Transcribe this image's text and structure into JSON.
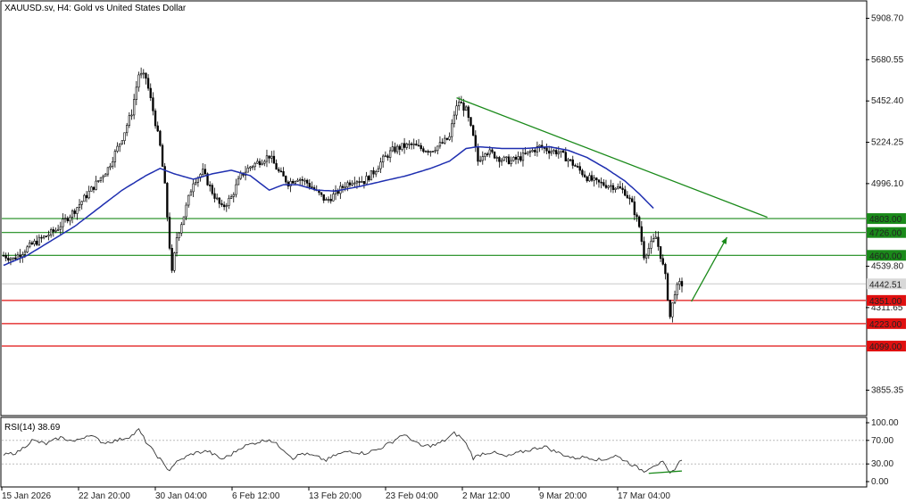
{
  "chart_data": [
    {
      "type": "candlestick",
      "title": "XAUUSD.sv, H4:  Gold vs United States Dollar",
      "ylim": [
        3720,
        6000
      ],
      "y_ticks": [
        "5908.70",
        "5680.55",
        "5452.40",
        "5224.25",
        "4996.10",
        "4539.80",
        "4311.65",
        "3855.35"
      ],
      "x_ticks": [
        "15 Jan 2026",
        "22 Jan 20:00",
        "30 Jan 04:00",
        "6 Feb 12:00",
        "13 Feb 20:00",
        "23 Feb 04:00",
        "2 Mar 12:00",
        "9 Mar 20:00",
        "17 Mar 04:00"
      ],
      "current_price": "4442.51",
      "horizontal_levels": [
        {
          "label": "4803.00",
          "value": 4803,
          "color": "#1a8a1a"
        },
        {
          "label": "4726.00",
          "value": 4726,
          "color": "#1a8a1a"
        },
        {
          "label": "4600.00",
          "value": 4600,
          "color": "#1a8a1a"
        },
        {
          "label": "4351.00",
          "value": 4351,
          "color": "#e01010"
        },
        {
          "label": "4223.00",
          "value": 4223,
          "color": "#e01010"
        },
        {
          "label": "4099.00",
          "value": 4099,
          "color": "#e01010"
        }
      ],
      "price_path_anchors": [
        [
          0,
          4600
        ],
        [
          4,
          4580
        ],
        [
          12,
          4660
        ],
        [
          22,
          4740
        ],
        [
          30,
          4850
        ],
        [
          38,
          4980
        ],
        [
          44,
          5080
        ],
        [
          50,
          5250
        ],
        [
          54,
          5390
        ],
        [
          57,
          5600
        ],
        [
          60,
          5580
        ],
        [
          63,
          5400
        ],
        [
          66,
          5200
        ],
        [
          68,
          4980
        ],
        [
          70,
          4650
        ],
        [
          71,
          4500
        ],
        [
          73,
          4700
        ],
        [
          76,
          4820
        ],
        [
          80,
          5010
        ],
        [
          84,
          5060
        ],
        [
          88,
          4950
        ],
        [
          92,
          4860
        ],
        [
          96,
          4920
        ],
        [
          100,
          5040
        ],
        [
          104,
          5090
        ],
        [
          108,
          5120
        ],
        [
          112,
          5150
        ],
        [
          116,
          5060
        ],
        [
          120,
          5000
        ],
        [
          124,
          5030
        ],
        [
          128,
          5000
        ],
        [
          132,
          4950
        ],
        [
          136,
          4900
        ],
        [
          140,
          4940
        ],
        [
          144,
          4990
        ],
        [
          148,
          5020
        ],
        [
          152,
          5010
        ],
        [
          156,
          5060
        ],
        [
          160,
          5130
        ],
        [
          164,
          5180
        ],
        [
          168,
          5200
        ],
        [
          172,
          5210
        ],
        [
          176,
          5190
        ],
        [
          180,
          5180
        ],
        [
          184,
          5210
        ],
        [
          188,
          5250
        ],
        [
          190,
          5380
        ],
        [
          192,
          5450
        ],
        [
          195,
          5400
        ],
        [
          198,
          5250
        ],
        [
          200,
          5120
        ],
        [
          203,
          5180
        ],
        [
          206,
          5160
        ],
        [
          210,
          5130
        ],
        [
          214,
          5120
        ],
        [
          218,
          5140
        ],
        [
          222,
          5170
        ],
        [
          226,
          5200
        ],
        [
          230,
          5180
        ],
        [
          234,
          5170
        ],
        [
          238,
          5130
        ],
        [
          242,
          5080
        ],
        [
          246,
          5030
        ],
        [
          250,
          5000
        ],
        [
          254,
          4990
        ],
        [
          258,
          4980
        ],
        [
          262,
          4950
        ],
        [
          265,
          4880
        ],
        [
          268,
          4760
        ],
        [
          270,
          4600
        ],
        [
          272,
          4640
        ],
        [
          275,
          4700
        ],
        [
          277,
          4600
        ],
        [
          279,
          4480
        ],
        [
          281,
          4260
        ],
        [
          283,
          4400
        ],
        [
          285,
          4440
        ]
      ],
      "ma_anchors": [
        [
          0,
          4545
        ],
        [
          10,
          4600
        ],
        [
          20,
          4680
        ],
        [
          30,
          4760
        ],
        [
          40,
          4860
        ],
        [
          50,
          4960
        ],
        [
          60,
          5040
        ],
        [
          66,
          5080
        ],
        [
          72,
          5050
        ],
        [
          80,
          5020
        ],
        [
          88,
          5050
        ],
        [
          96,
          5070
        ],
        [
          104,
          5040
        ],
        [
          112,
          4960
        ],
        [
          118,
          4990
        ],
        [
          124,
          4990
        ],
        [
          132,
          4960
        ],
        [
          140,
          4955
        ],
        [
          150,
          4980
        ],
        [
          160,
          5010
        ],
        [
          170,
          5040
        ],
        [
          180,
          5080
        ],
        [
          188,
          5120
        ],
        [
          195,
          5190
        ],
        [
          200,
          5200
        ],
        [
          210,
          5190
        ],
        [
          220,
          5190
        ],
        [
          230,
          5200
        ],
        [
          238,
          5180
        ],
        [
          246,
          5140
        ],
        [
          254,
          5080
        ],
        [
          262,
          5010
        ],
        [
          268,
          4940
        ],
        [
          274,
          4860
        ]
      ],
      "trendline": {
        "start": [
          191,
          5470
        ],
        "end": [
          322,
          4810
        ],
        "color": "#1a8a1a"
      },
      "arrow": {
        "start": [
          290,
          4345
        ],
        "end": [
          305,
          4700
        ],
        "color": "#1a8a1a"
      },
      "ma_color": "#1f2fb0",
      "levels_label_color": "#ffffff"
    },
    {
      "type": "line",
      "title": "RSI(14) 38.69",
      "ylim": [
        0,
        100
      ],
      "y_ticks": [
        "100.00",
        "70.00",
        "30.00",
        "0.00"
      ],
      "overbought": 70,
      "oversold": 30,
      "rsi_anchors": [
        [
          0,
          45
        ],
        [
          6,
          50
        ],
        [
          12,
          70
        ],
        [
          18,
          64
        ],
        [
          24,
          75
        ],
        [
          30,
          68
        ],
        [
          36,
          80
        ],
        [
          42,
          66
        ],
        [
          48,
          70
        ],
        [
          54,
          78
        ],
        [
          57,
          88
        ],
        [
          60,
          68
        ],
        [
          63,
          52
        ],
        [
          66,
          38
        ],
        [
          68,
          26
        ],
        [
          70,
          20
        ],
        [
          72,
          30
        ],
        [
          76,
          40
        ],
        [
          80,
          48
        ],
        [
          86,
          52
        ],
        [
          92,
          38
        ],
        [
          96,
          46
        ],
        [
          100,
          58
        ],
        [
          106,
          66
        ],
        [
          112,
          72
        ],
        [
          118,
          55
        ],
        [
          122,
          40
        ],
        [
          126,
          48
        ],
        [
          132,
          42
        ],
        [
          136,
          36
        ],
        [
          140,
          45
        ],
        [
          146,
          52
        ],
        [
          152,
          48
        ],
        [
          158,
          55
        ],
        [
          164,
          68
        ],
        [
          168,
          80
        ],
        [
          172,
          72
        ],
        [
          176,
          60
        ],
        [
          182,
          62
        ],
        [
          186,
          70
        ],
        [
          190,
          82
        ],
        [
          193,
          75
        ],
        [
          196,
          58
        ],
        [
          198,
          40
        ],
        [
          202,
          48
        ],
        [
          206,
          50
        ],
        [
          212,
          42
        ],
        [
          218,
          50
        ],
        [
          224,
          56
        ],
        [
          228,
          60
        ],
        [
          232,
          52
        ],
        [
          236,
          46
        ],
        [
          240,
          40
        ],
        [
          246,
          42
        ],
        [
          252,
          36
        ],
        [
          258,
          44
        ],
        [
          262,
          36
        ],
        [
          266,
          26
        ],
        [
          270,
          18
        ],
        [
          274,
          28
        ],
        [
          278,
          32
        ],
        [
          281,
          12
        ],
        [
          284,
          28
        ],
        [
          286,
          38
        ]
      ],
      "divergence_line": {
        "start": [
          272,
          14
        ],
        "end": [
          286,
          18
        ],
        "color": "#1a8a1a"
      },
      "line_color": "#333333"
    }
  ]
}
